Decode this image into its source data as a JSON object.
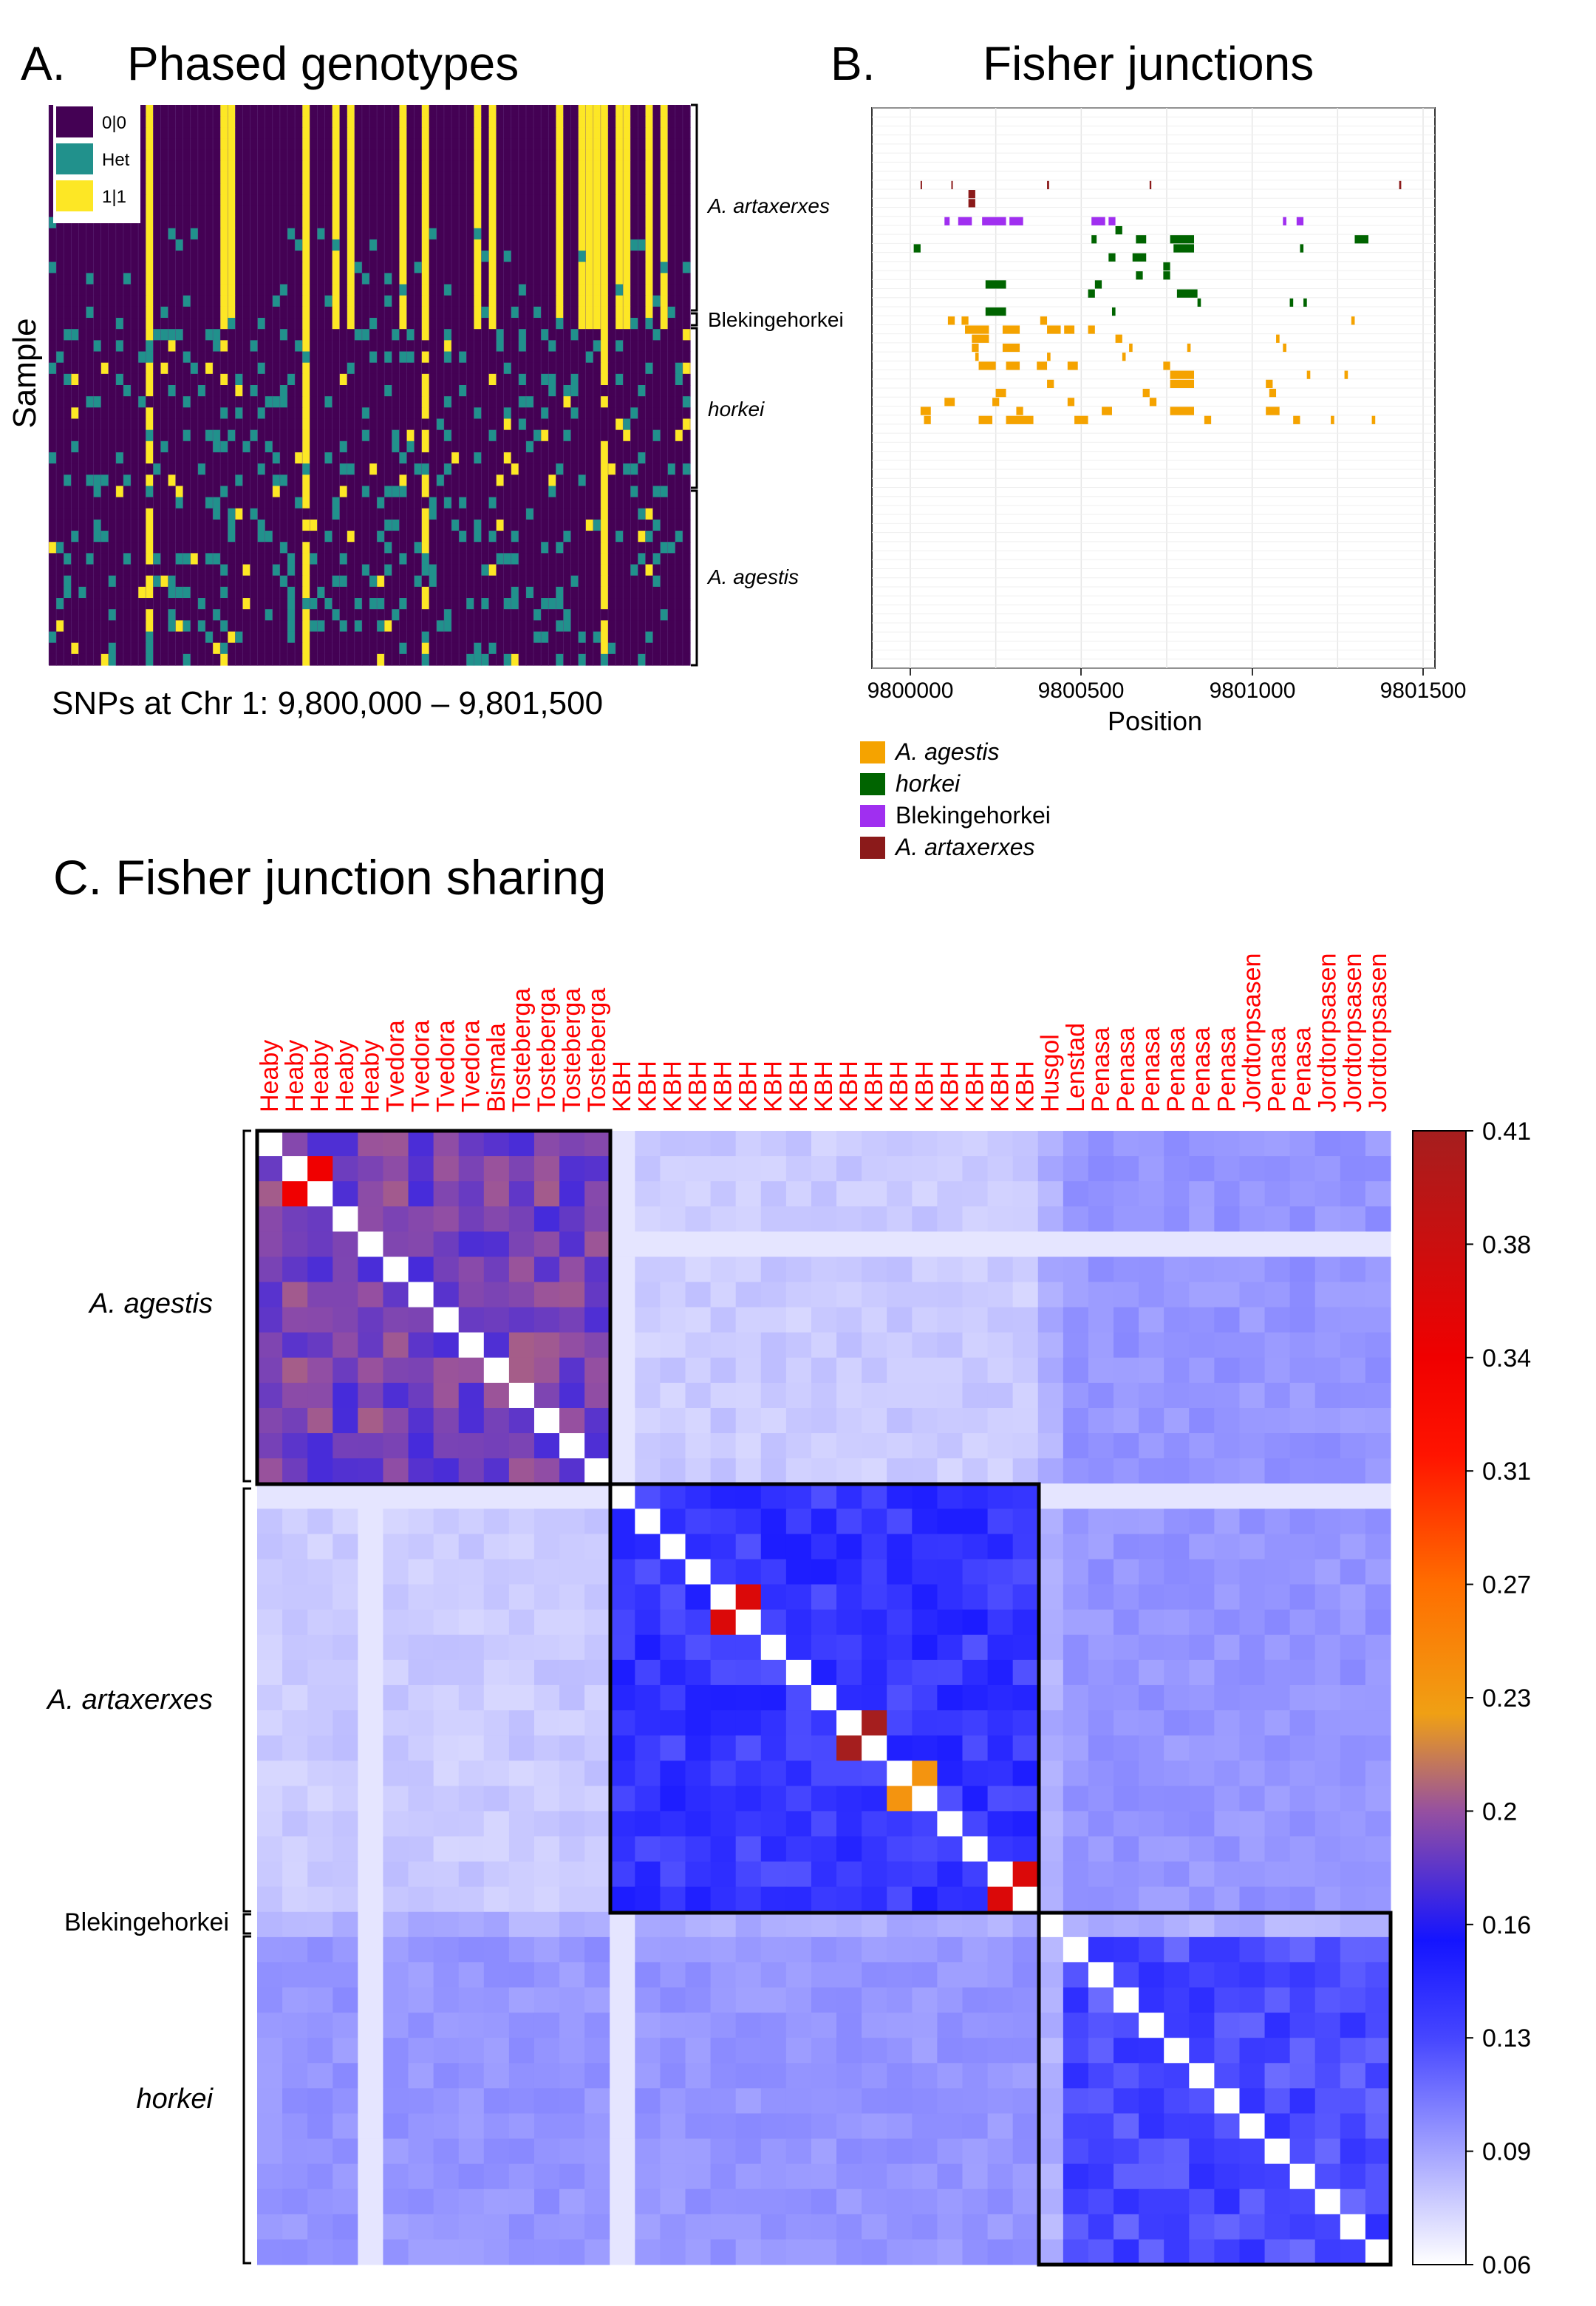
{
  "panel_a": {
    "letter": "A.",
    "title": "Phased genotypes",
    "ylabel": "Sample",
    "xlabel": "SNPs at Chr 1: 9,800,000 –  9,801,500",
    "legend": [
      {
        "label": "0|0",
        "color": "#440154"
      },
      {
        "label": "Het",
        "color": "#21918c"
      },
      {
        "label": "1|1",
        "color": "#fde725"
      }
    ],
    "groups": [
      {
        "label": "A. artaxerxes",
        "italic": true
      },
      {
        "label": "Blekingehorkei",
        "italic": false
      },
      {
        "label": "horkei",
        "italic": true
      },
      {
        "label": "A. agestis",
        "italic": true
      }
    ]
  },
  "panel_b": {
    "letter": "B.",
    "title": "Fisher junctions",
    "xlabel": "Position",
    "ticks": [
      "9800000",
      "9800500",
      "9801000",
      "9801500"
    ],
    "legend": [
      {
        "label": "A. agestis",
        "color": "#f5a300",
        "italic": true
      },
      {
        "label": "horkei",
        "color": "#006400",
        "italic": true
      },
      {
        "label": "Blekingehorkei",
        "color": "#a02ff0",
        "italic": false
      },
      {
        "label": "A. artaxerxes",
        "color": "#8b1a1a",
        "italic": true
      }
    ]
  },
  "panel_c": {
    "title": "C. Fisher junction sharing",
    "groups": [
      {
        "label": "A. agestis",
        "italic": true
      },
      {
        "label": "A. artaxerxes",
        "italic": true
      },
      {
        "label": "Blekingehorkei",
        "italic": false
      },
      {
        "label": "horkei",
        "italic": true
      }
    ]
  },
  "chart_data": [
    {
      "type": "heatmap",
      "title": "Phased genotypes",
      "ylabel": "Sample",
      "xlabel": "SNPs at Chr 1: 9,800,000 –  9,801,500",
      "categories": [
        "0|0",
        "Het",
        "1|1"
      ],
      "colors": [
        "#440154",
        "#21918c",
        "#fde725"
      ],
      "row_groups": [
        "A. artaxerxes",
        "Blekingehorkei",
        "horkei",
        "A. agestis"
      ]
    },
    {
      "type": "bar",
      "title": "Fisher junctions",
      "xlabel": "Position",
      "xlim": [
        9800000,
        9801500
      ],
      "xticks": [
        9800000,
        9800500,
        9801000,
        9801500
      ],
      "series": [
        {
          "name": "A. agestis",
          "color": "#f5a300"
        },
        {
          "name": "horkei",
          "color": "#006400"
        },
        {
          "name": "Blekingehorkei",
          "color": "#a02ff0"
        },
        {
          "name": "A. artaxerxes",
          "color": "#8b1a1a"
        }
      ]
    },
    {
      "type": "heatmap",
      "title": "C. Fisher junction sharing",
      "colorbar_ticks": [
        "0.41",
        "0.38",
        "0.34",
        "0.31",
        "0.27",
        "0.23",
        "0.2",
        "0.16",
        "0.13",
        "0.09",
        "0.06"
      ],
      "colorbar_range": [
        0.06,
        0.41
      ],
      "column_labels": [
        "Heaby",
        "Heaby",
        "Heaby",
        "Heaby",
        "Heaby",
        "Tvedora",
        "Tvedora",
        "Tvedora",
        "Tvedora",
        "Bismala",
        "Tosteberga",
        "Tosteberga",
        "Tosteberga",
        "Tosteberga",
        "KBH",
        "KBH",
        "KBH",
        "KBH",
        "KBH",
        "KBH",
        "KBH",
        "KBH",
        "KBH",
        "KBH",
        "KBH",
        "KBH",
        "KBH",
        "KBH",
        "KBH",
        "KBH",
        "KBH",
        "Husgol",
        "Lenstad",
        "Penasa",
        "Penasa",
        "Penasa",
        "Penasa",
        "Penasa",
        "Penasa",
        "Jordtorpsasen",
        "Penasa",
        "Penasa",
        "Jordtorpsasen",
        "Jordtorpsasen",
        "Jordtorpsasen"
      ],
      "row_groups": [
        "A. agestis",
        "A. artaxerxes",
        "Blekingehorkei",
        "horkei"
      ],
      "group_sizes": [
        14,
        17,
        1,
        13
      ],
      "within_group_mean": {
        "A. agestis": 0.19,
        "A. artaxerxes": 0.14,
        "horkei": 0.13
      },
      "between_group_mean": {
        "agestis-artaxerxes": 0.08,
        "agestis-horkei": 0.1,
        "artaxerxes-horkei": 0.1
      },
      "highlights": [
        {
          "row": 1,
          "col": 2,
          "value": 0.34
        },
        {
          "row": 18,
          "col": 19,
          "value": 0.36
        },
        {
          "row": 23,
          "col": 24,
          "value": 0.41
        },
        {
          "row": 25,
          "col": 26,
          "value": 0.24
        },
        {
          "row": 29,
          "col": 30,
          "value": 0.36
        }
      ]
    }
  ]
}
